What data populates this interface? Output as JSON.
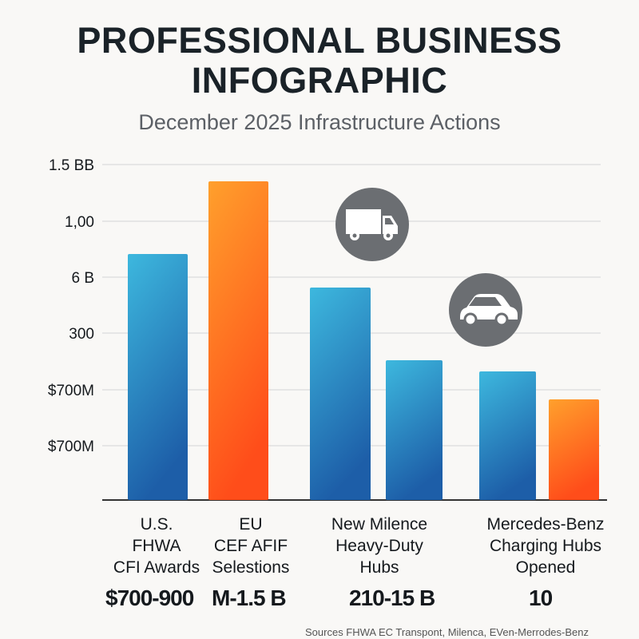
{
  "chart_data": {
    "type": "bar",
    "title": "PROFESSIONAL BUSINESS INFOGRAPHIC",
    "subtitle": "December 2025 Infrastructure Actions",
    "y_tick_labels": [
      "$700M",
      "$700M",
      "300",
      "6 B",
      "1,00",
      "1.5 BB"
    ],
    "ylim": [
      0,
      6
    ],
    "grid": true,
    "categories": [
      "U.S. FHWA CFI Awards",
      "EU CEF AFIF Selestions",
      "New Milence Heavy-Duty Hubs",
      "Mercedes-Benz Charging Hubs Opened"
    ],
    "category_lines": [
      [
        "U.S.",
        "FHWA",
        "CFI Awards"
      ],
      [
        "EU",
        "CEF AFIF",
        "Selestions"
      ],
      [
        "New Milence",
        "Heavy-Duty",
        "Hubs"
      ],
      [
        "Mercedes-Benz",
        "Charging Hubs",
        "Opened"
      ]
    ],
    "bars": [
      {
        "group": 0,
        "value": 4.4,
        "color": "blue"
      },
      {
        "group": 1,
        "value": 5.7,
        "color": "orange"
      },
      {
        "group": 2,
        "value": 3.8,
        "color": "blue"
      },
      {
        "group": 2,
        "value": 2.5,
        "color": "blue"
      },
      {
        "group": 3,
        "value": 2.3,
        "color": "blue"
      },
      {
        "group": 3,
        "value": 1.8,
        "color": "orange"
      }
    ],
    "value_labels": [
      "$700-900",
      "M-1.5 B",
      "210-15 B",
      "10"
    ],
    "icons": [
      "truck-icon",
      "car-icon"
    ],
    "colors": {
      "blue_top": "#3db8de",
      "blue_bottom": "#1d5ea8",
      "orange_top": "#ffa02c",
      "orange_bottom": "#ff4d1a",
      "icon_circle": "#6b6e72",
      "grid": "#dcdcdc",
      "axis": "#333333"
    }
  },
  "footer": {
    "source": "Sources FHWA EC Transpont, Milenca, EVen-Merrodes-Benz"
  }
}
